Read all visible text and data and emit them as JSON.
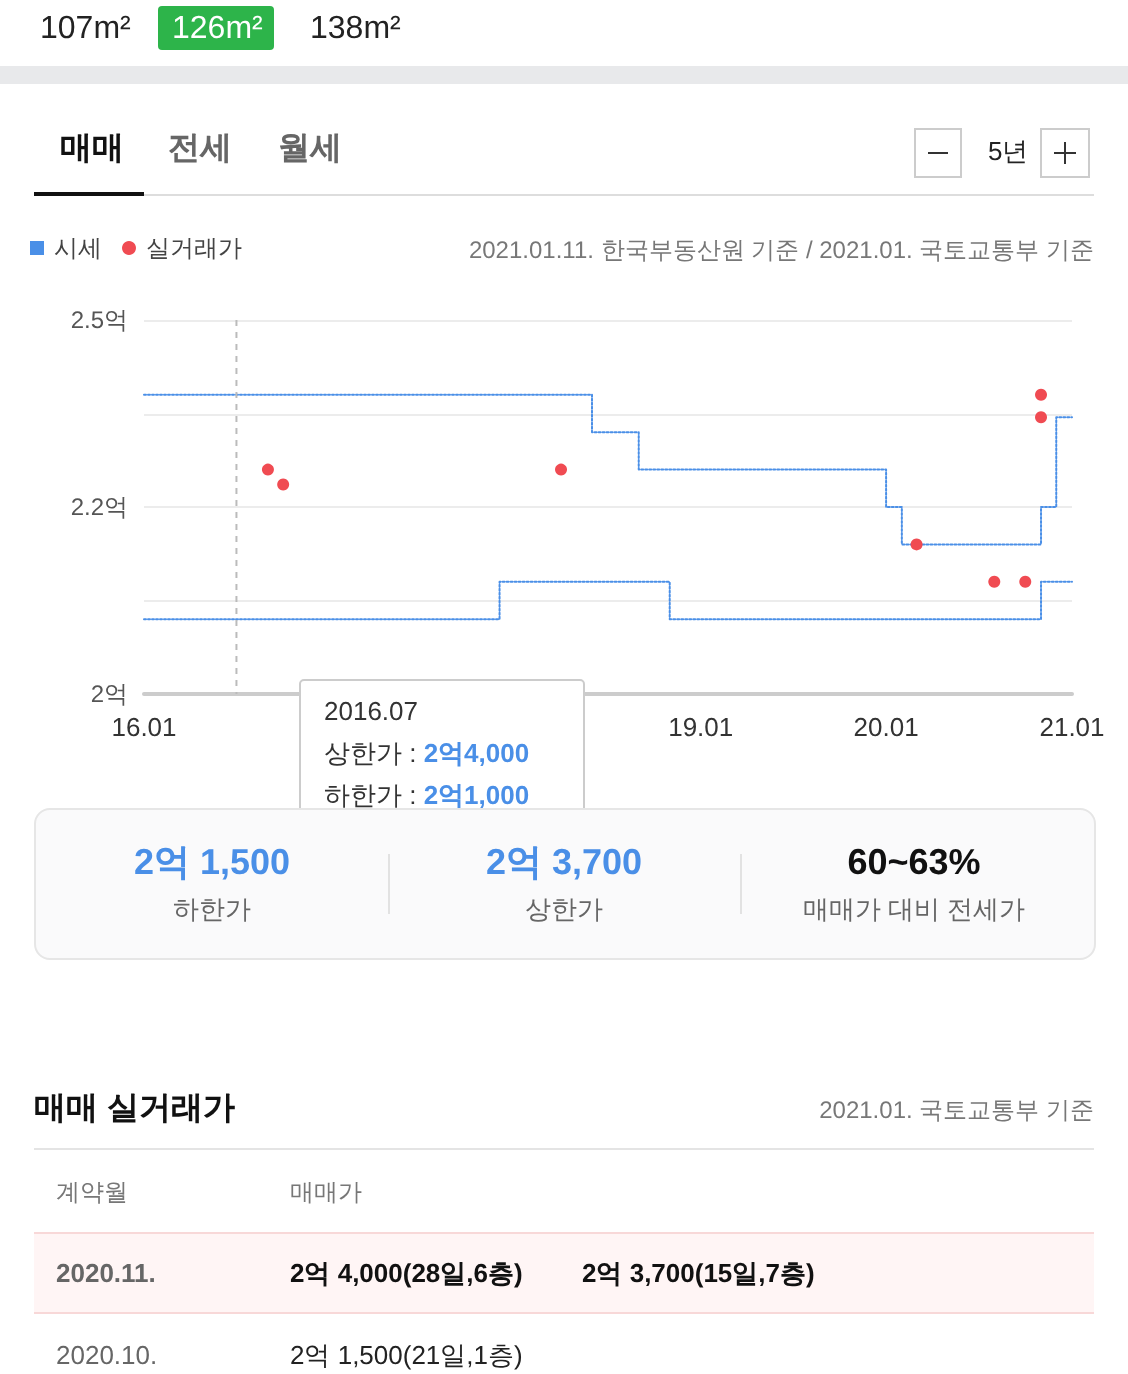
{
  "chart_data": [
    {
      "type": "other",
      "annotations": [
        "107m²",
        "126m²",
        "138m²",
        "매매",
        "전세",
        "월세",
        "5년"
      ]
    },
    {
      "type": "step",
      "legend": "top left",
      "grid": "y",
      "annotations": [
        "2021.01.11. 한국부동산원 기준 / 2021.01. 국토교통부 기준",
        "2016.07\n상한가 : 2억4,000\n하한가 : 2억1,000"
      ],
      "ref_lines": [
        {
          "axis": "x",
          "value": "2016-07",
          "color": "#bbbbbb",
          "line_style": "dashed"
        }
      ],
      "xlim": [
        "2016-01",
        "2021-01"
      ],
      "xticks": [
        {
          "value": "2016-01",
          "label": "16.01"
        },
        {
          "value": "2019-01",
          "label": "19.01"
        },
        {
          "value": "2020-01",
          "label": "20.01"
        },
        {
          "value": "2021-01",
          "label": "21.01"
        }
      ],
      "ylim": [
        2,
        2.5
      ],
      "yticks": [
        {
          "value": 2,
          "label": "2억"
        },
        {
          "value": 2.125,
          "label": null
        },
        {
          "value": 2.25,
          "label": "2.2억"
        },
        {
          "value": 2.375,
          "label": null
        },
        {
          "value": 2.5,
          "label": "2.5억"
        }
      ],
      "series": [
        {
          "name": "시세",
          "type": "step",
          "color": "#4a8fe7",
          "line_style": "dotted",
          "x": [
            "2016-01",
            "2017-12",
            "2018-06",
            "2018-09",
            "2018-11",
            "2020-01",
            "2020-02",
            "2020-11",
            "2020-12",
            "2021-01"
          ],
          "values": [
            2.4,
            2.4,
            2.35,
            2.3,
            2.3,
            2.25,
            2.2,
            2.25,
            2.37,
            2.37
          ]
        },
        {
          "type": "step",
          "color": "#4a8fe7",
          "line_style": "dotted",
          "x": [
            "2016-01",
            "2017-12",
            "2018-06",
            "2018-09",
            "2018-11",
            "2020-01",
            "2020-02",
            "2020-11",
            "2020-12",
            "2021-01"
          ],
          "values": [
            2.1,
            2.15,
            2.15,
            2.15,
            2.1,
            2.1,
            2.1,
            2.15,
            2.15,
            2.15
          ]
        },
        {
          "name": "실거래가",
          "type": "scatter",
          "marker": "circle",
          "color": "#f04b52",
          "x": [
            "2016-09",
            "2016-10",
            "2018-04",
            "2020-03",
            "2020-08",
            "2020-10",
            "2020-11",
            "2020-11"
          ],
          "values": [
            2.3,
            2.28,
            2.3,
            2.2,
            2.15,
            2.15,
            2.4,
            2.37
          ]
        }
      ]
    },
    {
      "type": "other",
      "annotations": [
        "2억 1,500",
        "하한가",
        "2억 3,700",
        "상한가",
        "60~63%",
        "매매가 대비 전세가"
      ]
    },
    {
      "type": "other",
      "title": "매매 실거래가",
      "annotations": [
        "2021.01. 국토교통부 기준",
        "계약월",
        "매매가",
        "2020.11.",
        "2억 4,000(28일,6층)",
        "2억 3,700(15일,7층)",
        "2020.10.",
        "2억 1,500(21일,1층)"
      ]
    }
  ]
}
